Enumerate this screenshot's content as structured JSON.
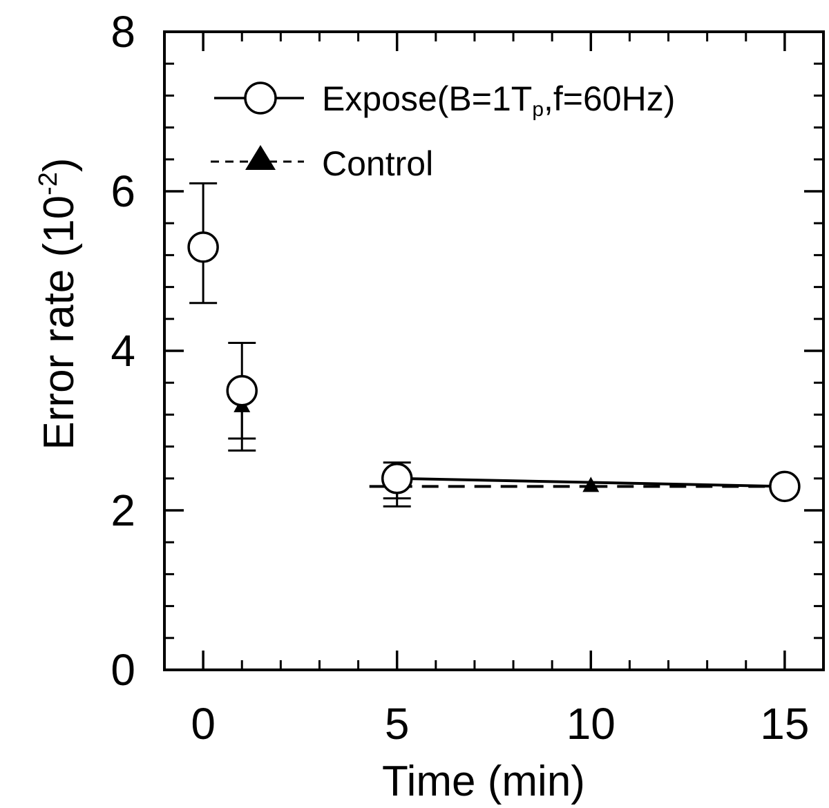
{
  "chart_data": {
    "type": "scatter",
    "xlabel": "Time (min)",
    "ylabel": "Error rate (10",
    "ylabel_exp": "-2",
    "ylabel_close": ")",
    "xlim": [
      -1,
      16
    ],
    "ylim": [
      0,
      8
    ],
    "xticks": [
      0,
      5,
      10,
      15
    ],
    "yticks": [
      0,
      2,
      4,
      6,
      8
    ],
    "x_minor_step": 1,
    "y_minor_step": 0.4,
    "grid": false,
    "legend_position": "top-left",
    "series": [
      {
        "name": "Expose(B=1T",
        "name_sub": "p",
        "name_suffix": ",f=60Hz)",
        "marker": "open-circle",
        "line": "solid",
        "points": [
          {
            "x": 0,
            "y": 5.3,
            "err_low": 4.6,
            "err_high": 6.1
          },
          {
            "x": 1,
            "y": 3.5,
            "err_low": 2.9,
            "err_high": 4.1
          },
          {
            "x": 5,
            "y": 2.4,
            "err_low": 2.15,
            "err_high": 2.6
          },
          {
            "x": 15,
            "y": 2.3
          }
        ]
      },
      {
        "name": "Control",
        "marker": "filled-triangle",
        "line": "dashed",
        "points": [
          {
            "x": 0,
            "y": 5.3
          },
          {
            "x": 1,
            "y": 3.3,
            "err_low": 2.75,
            "err_high": 3.3
          },
          {
            "x": 5,
            "y": 2.3,
            "err_low": 2.05,
            "err_high": 2.4
          },
          {
            "x": 10,
            "y": 2.3
          },
          {
            "x": 15,
            "y": 2.3
          }
        ]
      }
    ]
  }
}
